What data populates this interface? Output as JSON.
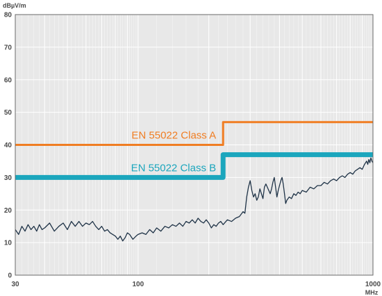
{
  "chart_data": {
    "type": "line",
    "title": "",
    "xlabel": "MHz",
    "ylabel": "dBµV/m",
    "x_scale": "log",
    "xlim": [
      30,
      1000
    ],
    "ylim": [
      0,
      80
    ],
    "x_ticks": [
      30,
      100,
      1000
    ],
    "y_ticks": [
      0,
      10,
      20,
      30,
      40,
      50,
      60,
      70,
      80
    ],
    "grid": true,
    "colors": {
      "background": "#e8e8e8",
      "grid": "#ffffff",
      "class_a": "#f07d22",
      "class_b": "#1ba6bd",
      "measurement": "#1f3347",
      "axis_text": "#4a4a4a"
    },
    "limits": [
      {
        "name": "EN 55022 Class A",
        "color": "#f07d22",
        "points": [
          [
            30,
            40
          ],
          [
            230,
            40
          ],
          [
            230,
            47
          ],
          [
            1000,
            47
          ]
        ]
      },
      {
        "name": "EN 55022 Class B",
        "color": "#1ba6bd",
        "points": [
          [
            30,
            30
          ],
          [
            230,
            30
          ],
          [
            230,
            37
          ],
          [
            1000,
            37
          ]
        ]
      }
    ],
    "measurement": {
      "color": "#1f3347",
      "points": [
        [
          30,
          14
        ],
        [
          31,
          12.5
        ],
        [
          32,
          15
        ],
        [
          33,
          13.5
        ],
        [
          34,
          15.5
        ],
        [
          35,
          14
        ],
        [
          36,
          15
        ],
        [
          37,
          13.5
        ],
        [
          38,
          15.5
        ],
        [
          39,
          14
        ],
        [
          40,
          14.5
        ],
        [
          42,
          16
        ],
        [
          44,
          13.5
        ],
        [
          46,
          15
        ],
        [
          48,
          16
        ],
        [
          50,
          14
        ],
        [
          52,
          16.5
        ],
        [
          54,
          15
        ],
        [
          56,
          16.5
        ],
        [
          58,
          15
        ],
        [
          60,
          16
        ],
        [
          62,
          15.5
        ],
        [
          64,
          16.5
        ],
        [
          66,
          15
        ],
        [
          68,
          14
        ],
        [
          70,
          15
        ],
        [
          72,
          13.5
        ],
        [
          74,
          14
        ],
        [
          76,
          13
        ],
        [
          78,
          12.5
        ],
        [
          80,
          12
        ],
        [
          82,
          11
        ],
        [
          84,
          12
        ],
        [
          86,
          10.5
        ],
        [
          88,
          11.5
        ],
        [
          90,
          13
        ],
        [
          92,
          12.5
        ],
        [
          95,
          11
        ],
        [
          98,
          12
        ],
        [
          100,
          12.5
        ],
        [
          104,
          13
        ],
        [
          108,
          12.5
        ],
        [
          112,
          14
        ],
        [
          116,
          13
        ],
        [
          120,
          14.5
        ],
        [
          125,
          13.5
        ],
        [
          130,
          15
        ],
        [
          135,
          14.5
        ],
        [
          140,
          15.5
        ],
        [
          145,
          15
        ],
        [
          150,
          16
        ],
        [
          155,
          15
        ],
        [
          160,
          16.5
        ],
        [
          165,
          16
        ],
        [
          170,
          17
        ],
        [
          175,
          16
        ],
        [
          180,
          17.5
        ],
        [
          185,
          16.5
        ],
        [
          190,
          16
        ],
        [
          195,
          17
        ],
        [
          200,
          16
        ],
        [
          205,
          14.5
        ],
        [
          210,
          15.5
        ],
        [
          215,
          15
        ],
        [
          220,
          16
        ],
        [
          225,
          16.5
        ],
        [
          230,
          15.5
        ],
        [
          240,
          17
        ],
        [
          250,
          16.5
        ],
        [
          260,
          17.5
        ],
        [
          270,
          18
        ],
        [
          280,
          19.5
        ],
        [
          285,
          19
        ],
        [
          290,
          24
        ],
        [
          295,
          27
        ],
        [
          300,
          29
        ],
        [
          305,
          26
        ],
        [
          310,
          24
        ],
        [
          315,
          25
        ],
        [
          320,
          23
        ],
        [
          325,
          24
        ],
        [
          330,
          26.5
        ],
        [
          335,
          25
        ],
        [
          340,
          23.5
        ],
        [
          345,
          27
        ],
        [
          350,
          28
        ],
        [
          355,
          27
        ],
        [
          360,
          26
        ],
        [
          365,
          25
        ],
        [
          370,
          26.5
        ],
        [
          375,
          28.5
        ],
        [
          380,
          30
        ],
        [
          385,
          27
        ],
        [
          390,
          24
        ],
        [
          395,
          26
        ],
        [
          400,
          27.5
        ],
        [
          405,
          29
        ],
        [
          410,
          30
        ],
        [
          415,
          28
        ],
        [
          420,
          25
        ],
        [
          425,
          22
        ],
        [
          430,
          23
        ],
        [
          440,
          24
        ],
        [
          450,
          23.5
        ],
        [
          460,
          25
        ],
        [
          470,
          24.5
        ],
        [
          480,
          25.5
        ],
        [
          490,
          25
        ],
        [
          500,
          26
        ],
        [
          520,
          25.5
        ],
        [
          540,
          27
        ],
        [
          560,
          26.5
        ],
        [
          580,
          27.5
        ],
        [
          600,
          27.5
        ],
        [
          620,
          28.5
        ],
        [
          640,
          28
        ],
        [
          660,
          29
        ],
        [
          680,
          29.5
        ],
        [
          700,
          29
        ],
        [
          720,
          30
        ],
        [
          740,
          30.5
        ],
        [
          760,
          30
        ],
        [
          780,
          31
        ],
        [
          800,
          31.5
        ],
        [
          820,
          31
        ],
        [
          840,
          32
        ],
        [
          860,
          32.5
        ],
        [
          880,
          33
        ],
        [
          900,
          32.5
        ],
        [
          920,
          34
        ],
        [
          940,
          35
        ],
        [
          950,
          34
        ],
        [
          960,
          35.5
        ],
        [
          970,
          34.5
        ],
        [
          980,
          36
        ],
        [
          990,
          35
        ],
        [
          1000,
          34.5
        ]
      ]
    }
  }
}
